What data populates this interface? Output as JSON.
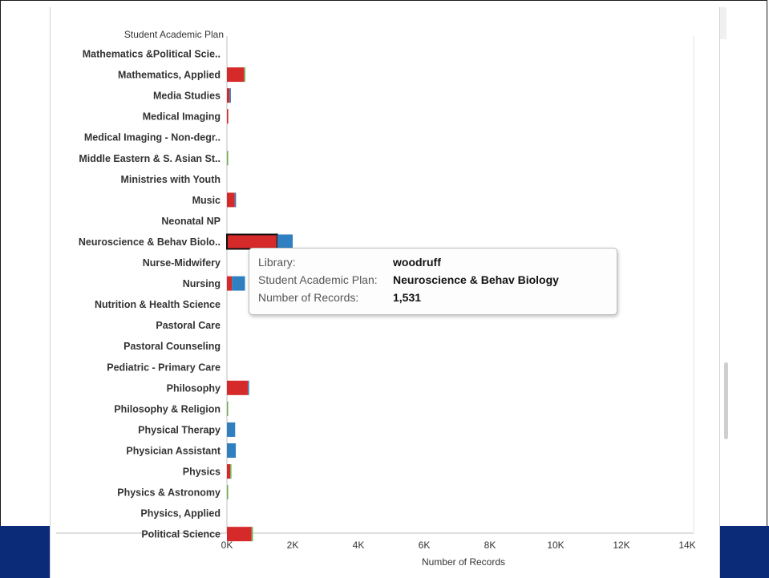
{
  "header": {
    "field_label": "Student Academic Plan"
  },
  "colors": {
    "red": "#d62a2a",
    "blue": "#2f7fc1",
    "green": "#6ab04c",
    "band": "#0b2a78"
  },
  "tooltip": {
    "rows": [
      {
        "key": "Library:",
        "value": "woodruff"
      },
      {
        "key": "Student Academic Plan:",
        "value": "Neuroscience & Behav Biology"
      },
      {
        "key": "Number of Records:",
        "value": "1,531"
      }
    ]
  },
  "chart_data": {
    "type": "bar",
    "orientation": "horizontal",
    "stacked": true,
    "xlabel": "Number of Records",
    "xlim": [
      0,
      14000
    ],
    "ticks": [
      0,
      2000,
      4000,
      6000,
      8000,
      10000,
      12000,
      14000
    ],
    "tick_labels": [
      "0K",
      "2K",
      "4K",
      "6K",
      "8K",
      "10K",
      "12K",
      "14K"
    ],
    "highlighted": {
      "category": "Neuroscience & Behav Biolo..",
      "series": "woodruff"
    },
    "categories": [
      "Mathematics &Political Scie..",
      "Mathematics, Applied",
      "Media Studies",
      "Medical Imaging",
      "Medical Imaging - Non-degr..",
      "Middle Eastern & S. Asian St..",
      "Ministries with Youth",
      "Music",
      "Neonatal NP",
      "Neuroscience & Behav Biolo..",
      "Nurse-Midwifery",
      "Nursing",
      "Nutrition & Health Science",
      "Pastoral Care",
      "Pastoral Counseling",
      "Pediatric - Primary Care",
      "Philosophy",
      "Philosophy & Religion",
      "Physical Therapy",
      "Physician Assistant",
      "Physics",
      "Physics & Astronomy",
      "Physics, Applied",
      "Political Science"
    ],
    "series": [
      {
        "name": "woodruff",
        "color": "#d62a2a",
        "values": [
          0,
          520,
          80,
          40,
          0,
          0,
          0,
          240,
          0,
          1531,
          0,
          150,
          0,
          0,
          0,
          0,
          640,
          0,
          0,
          0,
          100,
          0,
          0,
          750
        ]
      },
      {
        "color": "#2f7fc1",
        "values": [
          0,
          0,
          40,
          0,
          0,
          0,
          0,
          10,
          0,
          470,
          0,
          400,
          0,
          0,
          0,
          0,
          10,
          0,
          250,
          270,
          0,
          0,
          0,
          0
        ]
      },
      {
        "color": "#6ab04c",
        "values": [
          0,
          40,
          0,
          0,
          0,
          30,
          0,
          0,
          0,
          0,
          0,
          0,
          0,
          0,
          0,
          0,
          0,
          30,
          0,
          0,
          30,
          25,
          0,
          40
        ]
      }
    ]
  }
}
